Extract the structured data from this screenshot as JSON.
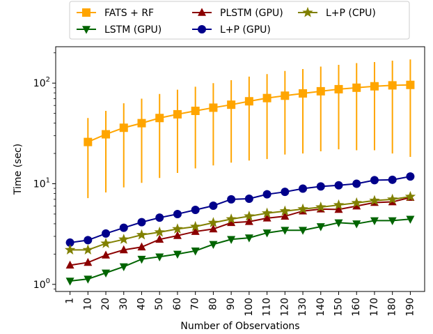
{
  "chart_data": {
    "type": "line",
    "xlabel": "Number of Observations",
    "ylabel": "Time (sec)",
    "yscale": "log",
    "ylim": [
      0.85,
      230
    ],
    "y_ticks": [
      {
        "value": 1,
        "base": "10",
        "exp": "0"
      },
      {
        "value": 10,
        "base": "10",
        "exp": "1"
      },
      {
        "value": 100,
        "base": "10",
        "exp": "2"
      }
    ],
    "x": [
      1,
      10,
      20,
      30,
      40,
      50,
      60,
      70,
      80,
      90,
      100,
      110,
      120,
      130,
      140,
      150,
      160,
      170,
      180,
      190
    ],
    "x_tick_labels": [
      "1",
      "10",
      "20",
      "30",
      "40",
      "50",
      "60",
      "70",
      "80",
      "90",
      "100",
      "110",
      "120",
      "130",
      "140",
      "150",
      "160",
      "170",
      "180",
      "190"
    ],
    "grid": false,
    "legend_placement": "top-center, above plot",
    "series": [
      {
        "name": "FATS + RF",
        "color": "#FFA500",
        "marker": "square",
        "x": [
          10,
          20,
          30,
          40,
          50,
          60,
          70,
          80,
          90,
          100,
          110,
          120,
          130,
          140,
          150,
          160,
          170,
          180,
          190
        ],
        "values": [
          26,
          31,
          36,
          40,
          45,
          49,
          53,
          57,
          61,
          66,
          71,
          75,
          79,
          83,
          87,
          90,
          93,
          95,
          96
        ],
        "err_low": [
          7.2,
          8.2,
          9.2,
          10.2,
          11.4,
          12.8,
          14.2,
          15.2,
          16.2,
          17,
          17.6,
          19.5,
          20,
          21,
          22,
          21.5,
          21.5,
          20,
          18.5
        ],
        "err_high": [
          45,
          53,
          63,
          70,
          78,
          86,
          92,
          100,
          107,
          116,
          123,
          132,
          138,
          146,
          152,
          158,
          162,
          167,
          172
        ]
      },
      {
        "name": "LSTM (GPU)",
        "color": "#006400",
        "marker": "triangle-down",
        "x": [
          1,
          10,
          20,
          30,
          40,
          50,
          60,
          70,
          80,
          90,
          100,
          110,
          120,
          130,
          140,
          150,
          160,
          170,
          180,
          190
        ],
        "values": [
          1.08,
          1.13,
          1.3,
          1.5,
          1.78,
          1.88,
          2.0,
          2.15,
          2.5,
          2.8,
          2.9,
          3.25,
          3.45,
          3.45,
          3.75,
          4.1,
          4.0,
          4.3,
          4.3,
          4.45
        ]
      },
      {
        "name": "PLSTM (GPU)",
        "color": "#8B0000",
        "marker": "triangle-up",
        "x": [
          1,
          10,
          20,
          30,
          40,
          50,
          60,
          70,
          80,
          90,
          100,
          110,
          120,
          130,
          140,
          150,
          160,
          170,
          180,
          190
        ],
        "values": [
          1.55,
          1.65,
          1.95,
          2.2,
          2.35,
          2.8,
          3.05,
          3.35,
          3.55,
          4.1,
          4.2,
          4.55,
          4.75,
          5.35,
          5.6,
          5.55,
          6.0,
          6.5,
          6.6,
          7.3
        ]
      },
      {
        "name": "L+P (GPU)",
        "color": "#00008B",
        "marker": "circle",
        "x": [
          1,
          10,
          20,
          30,
          40,
          50,
          60,
          70,
          80,
          90,
          100,
          110,
          120,
          130,
          140,
          150,
          160,
          170,
          180,
          190
        ],
        "values": [
          2.6,
          2.75,
          3.2,
          3.65,
          4.15,
          4.6,
          5.0,
          5.5,
          6.05,
          7.0,
          7.1,
          7.85,
          8.3,
          8.95,
          9.4,
          9.65,
          10.0,
          10.85,
          10.95,
          11.8
        ]
      },
      {
        "name": "L+P (CPU)",
        "color": "#808000",
        "marker": "star",
        "x": [
          1,
          10,
          20,
          30,
          40,
          50,
          60,
          70,
          80,
          90,
          100,
          110,
          120,
          130,
          140,
          150,
          160,
          170,
          180,
          190
        ],
        "values": [
          2.2,
          2.2,
          2.55,
          2.8,
          3.1,
          3.3,
          3.55,
          3.75,
          4.1,
          4.45,
          4.75,
          5.1,
          5.35,
          5.6,
          5.85,
          6.15,
          6.45,
          6.8,
          7.0,
          7.45
        ]
      }
    ]
  }
}
